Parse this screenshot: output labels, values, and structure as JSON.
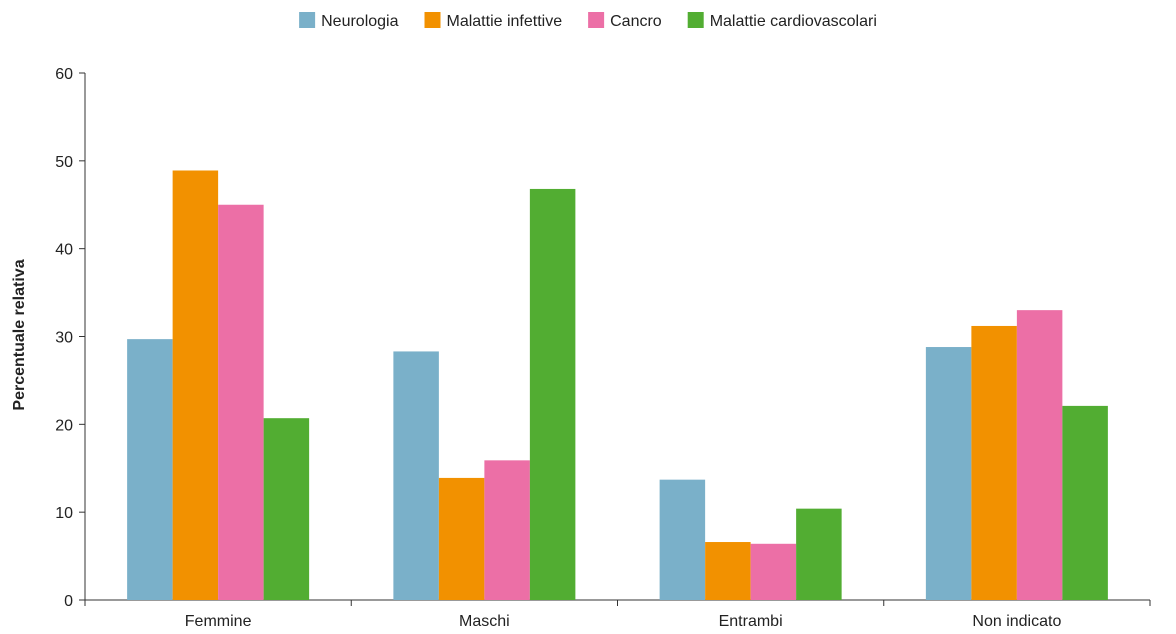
{
  "chart_data": {
    "type": "bar",
    "title": "",
    "xlabel": "",
    "ylabel": "Percentuale relativa",
    "ylim": [
      0,
      60
    ],
    "yticks": [
      0,
      10,
      20,
      30,
      40,
      50,
      60
    ],
    "grid": false,
    "legend_position": "top",
    "categories": [
      "Femmine",
      "Maschi",
      "Entrambi",
      "Non indicato"
    ],
    "series": [
      {
        "name": "Neurologia",
        "color": "#7ab0c9",
        "values": [
          29.7,
          28.3,
          13.7,
          28.8
        ]
      },
      {
        "name": "Malattie infettive",
        "color": "#f29100",
        "values": [
          48.9,
          13.9,
          6.6,
          31.2
        ]
      },
      {
        "name": "Cancro",
        "color": "#ec6fa6",
        "values": [
          45.0,
          15.9,
          6.4,
          33.0
        ]
      },
      {
        "name": "Malattie cardiovascolari",
        "color": "#52ad32",
        "values": [
          20.7,
          46.8,
          10.4,
          22.1
        ]
      }
    ]
  }
}
